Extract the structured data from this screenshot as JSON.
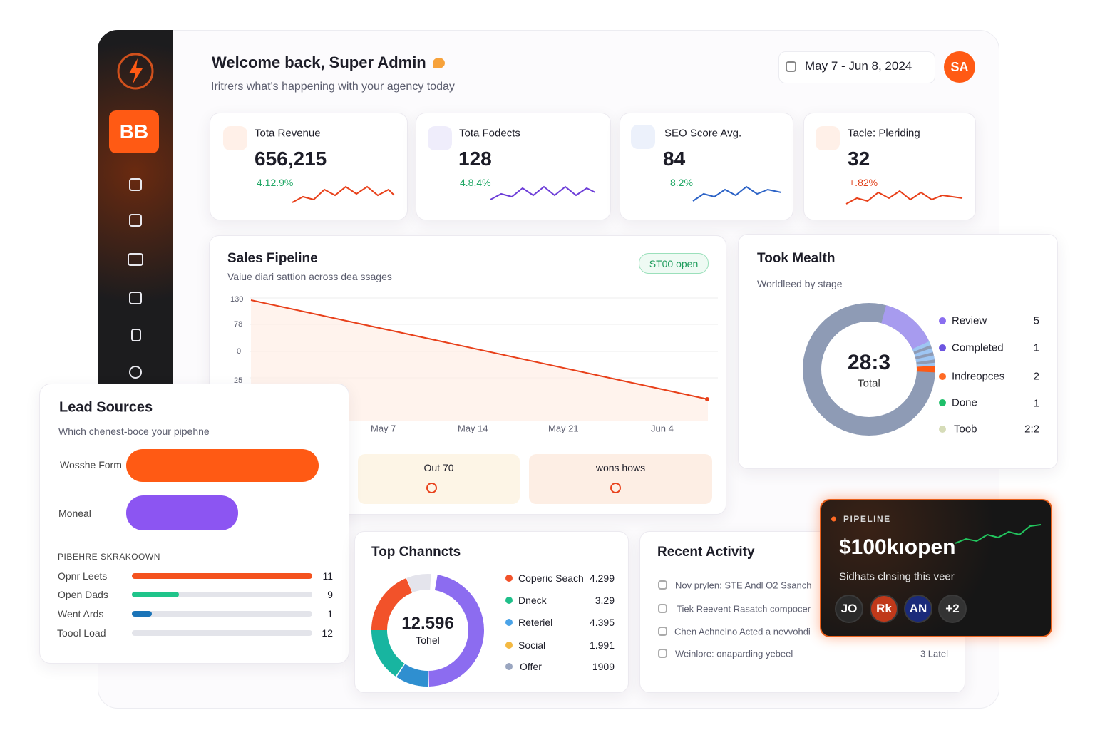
{
  "header": {
    "title": "Welcome back, Super Admin",
    "subtitle": "Iritrers what's happening with your agency today",
    "date_range": "May 7 - Jun 8, 2024",
    "avatar": "SA"
  },
  "sidebar": {
    "brand": "BB"
  },
  "stats": [
    {
      "label": "Tota Revenue",
      "value": "656,215",
      "change": "4.12.9%"
    },
    {
      "label": "Tota Fodects",
      "value": "128",
      "change": "4.8.4%"
    },
    {
      "label": "SEO Score Avg.",
      "value": "84",
      "change": "8.2%"
    },
    {
      "label": "Tacle: Pleriding",
      "value": "32",
      "change": "+.82%"
    }
  ],
  "sales_pipeline": {
    "title": "Sales Fipeline",
    "subtitle": "Vaiue diari sattion across dea ssages",
    "badge": "ST00 open",
    "y_labels": [
      "130",
      "78",
      "0",
      "25"
    ],
    "x_labels": [
      "May 7",
      "May 14",
      "May 21",
      "Jun 4"
    ],
    "tiles": [
      "Out 70",
      "wons hows"
    ]
  },
  "task_health": {
    "title": "Took Mealth",
    "subtitle": "Worldleed by stage",
    "total": "28:3",
    "total_label": "Total",
    "legend": [
      {
        "name": "Review",
        "value": "5"
      },
      {
        "name": "Completed",
        "value": "1"
      },
      {
        "name": "Indreopces",
        "value": "2"
      },
      {
        "name": "Done",
        "value": "1"
      },
      {
        "name": "Toob",
        "value": "2:2"
      }
    ]
  },
  "lead_sources": {
    "title": "Lead Sources",
    "subtitle": "Which chenest-boce your pipehne",
    "bars": [
      {
        "label": "Wosshe Form"
      },
      {
        "label": "Moneal"
      }
    ],
    "breakdown_title": "PIBEHRE SKRAKOOWN",
    "breakdown": [
      {
        "label": "Opnr Leets",
        "value": "11"
      },
      {
        "label": "Open Dads",
        "value": "9"
      },
      {
        "label": "Went Ards",
        "value": "1"
      },
      {
        "label": "Toool Load",
        "value": "12"
      }
    ]
  },
  "top_channels": {
    "title": "Top Channcts",
    "total": "12.596",
    "total_label": "Tohel",
    "legend": [
      {
        "name": "Coperic Seach",
        "value": "4.299"
      },
      {
        "name": "Dneck",
        "value": "3.29"
      },
      {
        "name": "Reteriel",
        "value": "4.395"
      },
      {
        "name": "Social",
        "value": "1.991"
      },
      {
        "name": "Offer",
        "value": "1909"
      }
    ]
  },
  "recent_activity": {
    "title": "Recent Activity",
    "items": [
      "Nov prylen: STE Andl O2 Ssanch",
      "Tiek Reevent Rasatch compocer",
      "Chen Achnelno Acted a nevvohdi",
      "Weinlore: onaparding yebeel"
    ],
    "time": "3 Latel"
  },
  "pipeline_card": {
    "label": "PIPELINE",
    "value": "$100kıopen",
    "subtitle": "Sidhats clnsing this veer",
    "avatars": [
      "JO",
      "Rk",
      "AN",
      "+2"
    ]
  }
}
